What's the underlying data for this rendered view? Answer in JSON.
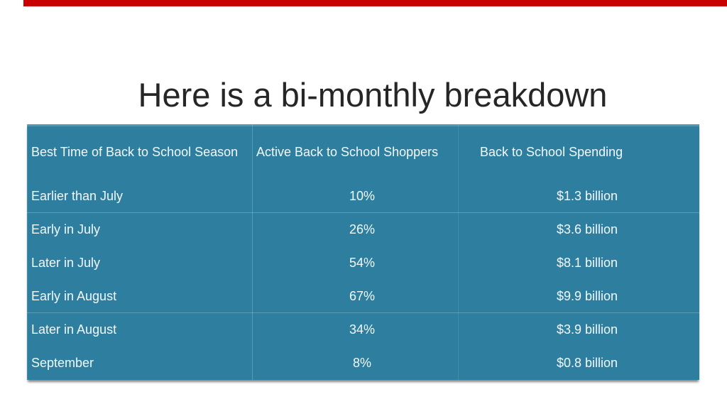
{
  "slide": {
    "title": "Here is a bi-monthly breakdown"
  },
  "colors": {
    "table_fill": "#2e7f9f",
    "table_text": "#f2f8fa",
    "title_text": "#262626",
    "top_bar_red": "#c80000"
  },
  "table": {
    "headers": [
      "Best Time of Back to School Season",
      "Active Back to School Shoppers",
      "Back to School Spending"
    ],
    "rows": [
      {
        "season": "Earlier than July",
        "shoppers": "10%",
        "spending": "$1.3 billion"
      },
      {
        "season": "Early in July",
        "shoppers": "26%",
        "spending": "$3.6 billion"
      },
      {
        "season": "Later in July",
        "shoppers": "54%",
        "spending": "$8.1 billion"
      },
      {
        "season": "Early in August",
        "shoppers": "67%",
        "spending": "$9.9 billion"
      },
      {
        "season": "Later in August",
        "shoppers": "34%",
        "spending": "$3.9 billion"
      },
      {
        "season": "September",
        "shoppers": "8%",
        "spending": "$0.8 billion"
      }
    ]
  }
}
